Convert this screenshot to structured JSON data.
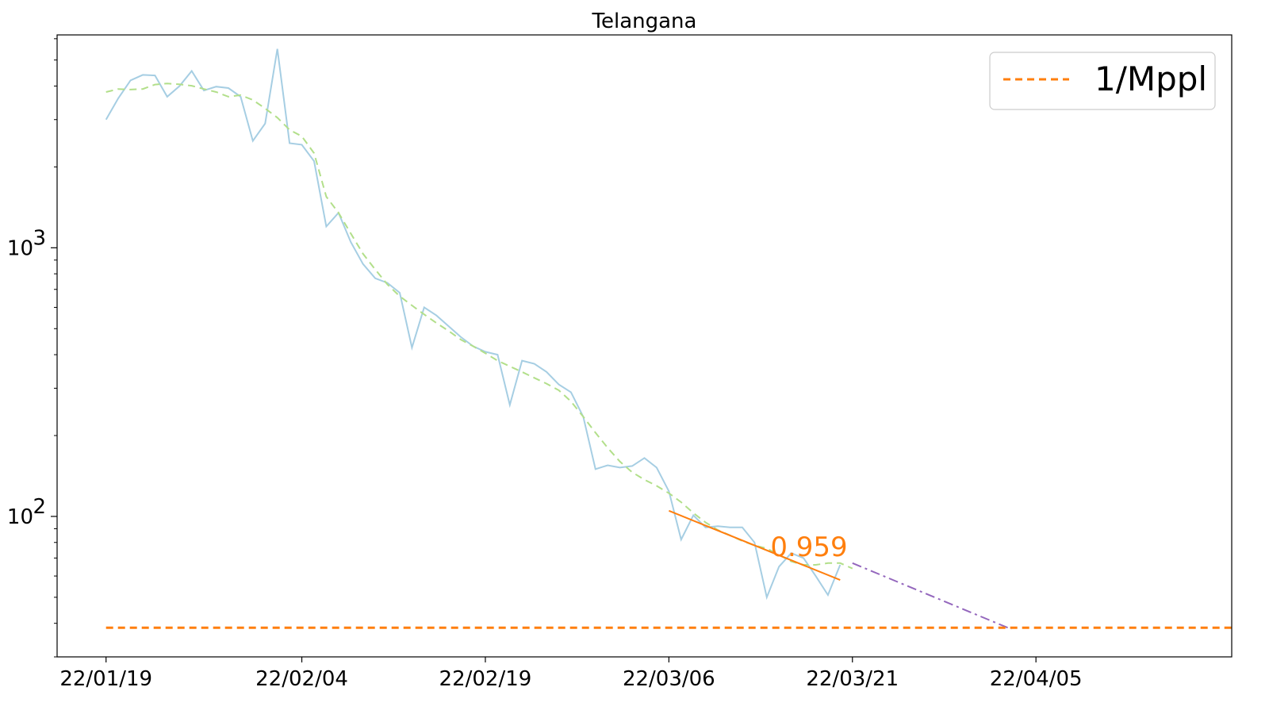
{
  "chart_data": {
    "type": "line",
    "title": "Telangana",
    "xlabel": "",
    "ylabel": "",
    "y_scale": "log",
    "xlim": [
      "2022-01-15",
      "2022-04-21"
    ],
    "ylim": [
      30,
      6200
    ],
    "grid": false,
    "legend_position": "top-right",
    "x_ticks": [
      "2022-01-19",
      "2022-02-04",
      "2022-02-19",
      "2022-03-06",
      "2022-03-21",
      "2022-04-05"
    ],
    "x_tick_labels": [
      "22/01/19",
      "22/02/04",
      "22/02/19",
      "22/03/06",
      "22/03/21",
      "22/04/05"
    ],
    "y_tick_labels": [
      {
        "value": 100,
        "base": "10",
        "exp": "2"
      },
      {
        "value": 1000,
        "base": "10",
        "exp": "3"
      }
    ],
    "annotation": {
      "text": "0.959",
      "color": "#ff7f0e"
    },
    "series": [
      {
        "role": "daily",
        "color": "#a6cee3",
        "style": "solid",
        "points": [
          [
            "2022-01-19",
            3000
          ],
          [
            "2022-01-20",
            3600
          ],
          [
            "2022-01-21",
            4200
          ],
          [
            "2022-01-22",
            4400
          ],
          [
            "2022-01-23",
            4380
          ],
          [
            "2022-01-24",
            3650
          ],
          [
            "2022-01-25",
            4000
          ],
          [
            "2022-01-26",
            4550
          ],
          [
            "2022-01-27",
            3850
          ],
          [
            "2022-01-28",
            3980
          ],
          [
            "2022-01-29",
            3930
          ],
          [
            "2022-01-30",
            3650
          ],
          [
            "2022-01-31",
            2500
          ],
          [
            "2022-02-01",
            2900
          ],
          [
            "2022-02-02",
            5500
          ],
          [
            "2022-02-03",
            2450
          ],
          [
            "2022-02-04",
            2420
          ],
          [
            "2022-02-05",
            2100
          ],
          [
            "2022-02-06",
            1200
          ],
          [
            "2022-02-07",
            1350
          ],
          [
            "2022-02-08",
            1050
          ],
          [
            "2022-02-09",
            870
          ],
          [
            "2022-02-10",
            770
          ],
          [
            "2022-02-11",
            740
          ],
          [
            "2022-02-12",
            680
          ],
          [
            "2022-02-13",
            425
          ],
          [
            "2022-02-14",
            600
          ],
          [
            "2022-02-15",
            560
          ],
          [
            "2022-02-16",
            510
          ],
          [
            "2022-02-17",
            465
          ],
          [
            "2022-02-18",
            430
          ],
          [
            "2022-02-19",
            410
          ],
          [
            "2022-02-20",
            400
          ],
          [
            "2022-02-21",
            260
          ],
          [
            "2022-02-22",
            380
          ],
          [
            "2022-02-23",
            370
          ],
          [
            "2022-02-24",
            345
          ],
          [
            "2022-02-25",
            310
          ],
          [
            "2022-02-26",
            290
          ],
          [
            "2022-02-27",
            235
          ],
          [
            "2022-02-28",
            150
          ],
          [
            "2022-03-01",
            155
          ],
          [
            "2022-03-02",
            152
          ],
          [
            "2022-03-03",
            154
          ],
          [
            "2022-03-04",
            165
          ],
          [
            "2022-03-05",
            152
          ],
          [
            "2022-03-06",
            124
          ],
          [
            "2022-03-07",
            82
          ],
          [
            "2022-03-08",
            101
          ],
          [
            "2022-03-09",
            91
          ],
          [
            "2022-03-10",
            92
          ],
          [
            "2022-03-11",
            91
          ],
          [
            "2022-03-12",
            91
          ],
          [
            "2022-03-13",
            80
          ],
          [
            "2022-03-14",
            50
          ],
          [
            "2022-03-15",
            65
          ],
          [
            "2022-03-16",
            73
          ],
          [
            "2022-03-17",
            70
          ],
          [
            "2022-03-18",
            60
          ],
          [
            "2022-03-19",
            51
          ],
          [
            "2022-03-20",
            66
          ]
        ]
      },
      {
        "role": "moving-average",
        "color": "#b2df8a",
        "style": "dashed",
        "points": [
          [
            "2022-01-19",
            3800
          ],
          [
            "2022-01-20",
            3900
          ],
          [
            "2022-01-21",
            3880
          ],
          [
            "2022-01-22",
            3900
          ],
          [
            "2022-01-23",
            4050
          ],
          [
            "2022-01-24",
            4090
          ],
          [
            "2022-01-25",
            4060
          ],
          [
            "2022-01-26",
            4010
          ],
          [
            "2022-01-27",
            3900
          ],
          [
            "2022-01-28",
            3800
          ],
          [
            "2022-01-29",
            3650
          ],
          [
            "2022-01-30",
            3700
          ],
          [
            "2022-01-31",
            3550
          ],
          [
            "2022-02-01",
            3300
          ],
          [
            "2022-02-02",
            3050
          ],
          [
            "2022-02-03",
            2750
          ],
          [
            "2022-02-04",
            2600
          ],
          [
            "2022-02-05",
            2250
          ],
          [
            "2022-02-06",
            1550
          ],
          [
            "2022-02-07",
            1350
          ],
          [
            "2022-02-08",
            1130
          ],
          [
            "2022-02-09",
            950
          ],
          [
            "2022-02-10",
            830
          ],
          [
            "2022-02-11",
            730
          ],
          [
            "2022-02-12",
            660
          ],
          [
            "2022-02-13",
            610
          ],
          [
            "2022-02-14",
            565
          ],
          [
            "2022-02-15",
            525
          ],
          [
            "2022-02-16",
            490
          ],
          [
            "2022-02-17",
            455
          ],
          [
            "2022-02-18",
            430
          ],
          [
            "2022-02-19",
            405
          ],
          [
            "2022-02-20",
            380
          ],
          [
            "2022-02-21",
            362
          ],
          [
            "2022-02-22",
            345
          ],
          [
            "2022-02-23",
            328
          ],
          [
            "2022-02-24",
            312
          ],
          [
            "2022-02-25",
            295
          ],
          [
            "2022-02-26",
            268
          ],
          [
            "2022-02-27",
            235
          ],
          [
            "2022-02-28",
            205
          ],
          [
            "2022-03-01",
            180
          ],
          [
            "2022-03-02",
            160
          ],
          [
            "2022-03-03",
            146
          ],
          [
            "2022-03-04",
            137
          ],
          [
            "2022-03-05",
            130
          ],
          [
            "2022-03-06",
            122
          ],
          [
            "2022-03-07",
            113
          ],
          [
            "2022-03-08",
            103
          ],
          [
            "2022-03-09",
            95
          ],
          [
            "2022-03-10",
            89
          ],
          [
            "2022-03-11",
            85
          ],
          [
            "2022-03-12",
            81
          ],
          [
            "2022-03-13",
            78
          ],
          [
            "2022-03-14",
            76
          ],
          [
            "2022-03-15",
            72
          ],
          [
            "2022-03-16",
            68
          ],
          [
            "2022-03-17",
            66
          ],
          [
            "2022-03-18",
            66
          ],
          [
            "2022-03-19",
            67
          ],
          [
            "2022-03-20",
            67
          ],
          [
            "2022-03-21",
            64
          ]
        ]
      },
      {
        "role": "trend-fit",
        "color": "#ff7f0e",
        "style": "solid",
        "points": [
          [
            "2022-03-06",
            105
          ],
          [
            "2022-03-20",
            58
          ]
        ]
      },
      {
        "role": "projection",
        "color": "#9467bd",
        "style": "dashdot",
        "points": [
          [
            "2022-03-21",
            67
          ],
          [
            "2022-04-03",
            38
          ]
        ]
      },
      {
        "name": "1/Mppl",
        "role": "threshold",
        "color": "#ff7f0e",
        "style": "dashed",
        "points": [
          [
            "2022-01-19",
            38.5
          ],
          [
            "2022-04-21",
            38.5
          ]
        ]
      }
    ]
  }
}
